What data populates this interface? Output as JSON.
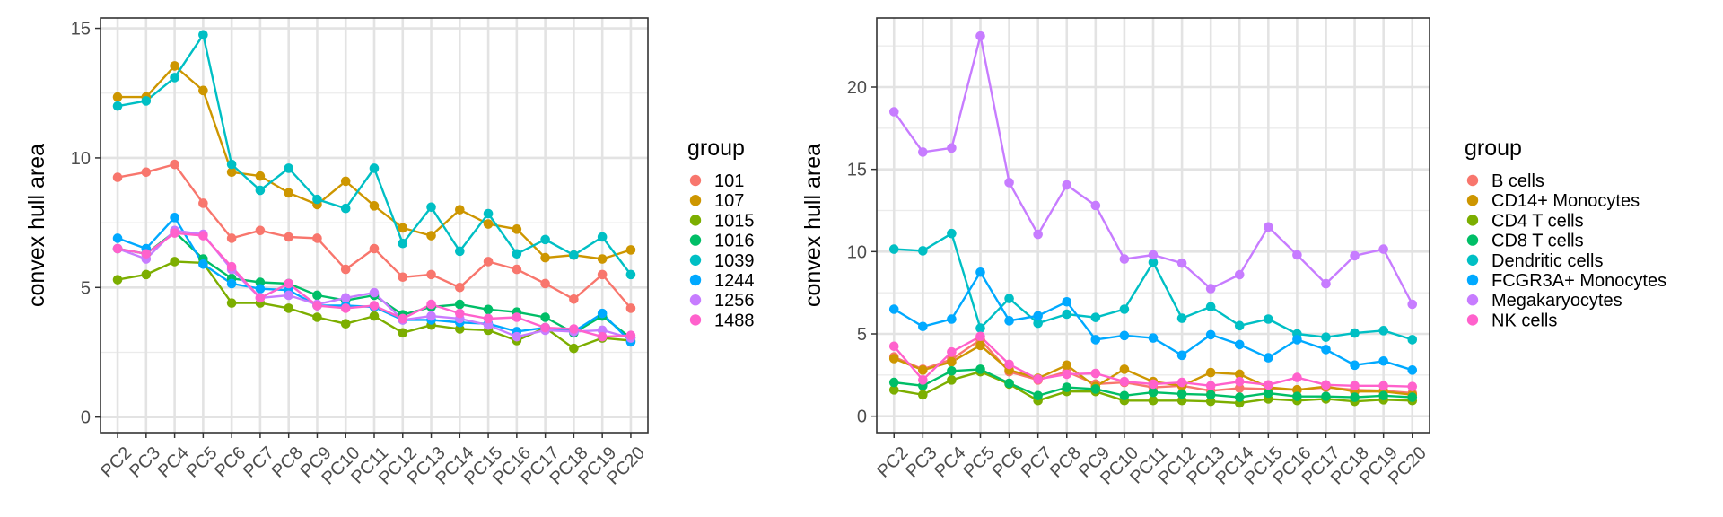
{
  "chart_data": [
    {
      "type": "line",
      "title": "",
      "xlabel": "",
      "ylabel": "convex hull area",
      "categories": [
        "PC2",
        "PC3",
        "PC4",
        "PC5",
        "PC6",
        "PC7",
        "PC8",
        "PC9",
        "PC10",
        "PC11",
        "PC12",
        "PC13",
        "PC14",
        "PC15",
        "PC16",
        "PC17",
        "PC18",
        "PC19",
        "PC20"
      ],
      "ylim": [
        -0.6,
        15.4
      ],
      "yticks": [
        0,
        5,
        10,
        15
      ],
      "grid": true,
      "legend": {
        "title": "group",
        "position": "right"
      },
      "series": [
        {
          "name": "101",
          "color": "#F8766D",
          "values": [
            9.25,
            9.45,
            9.75,
            8.25,
            6.9,
            7.2,
            6.95,
            6.9,
            5.7,
            6.5,
            5.4,
            5.5,
            5.0,
            6.0,
            5.7,
            5.15,
            4.55,
            5.5,
            4.2
          ]
        },
        {
          "name": "107",
          "color": "#CD9600",
          "values": [
            12.35,
            12.35,
            13.55,
            12.6,
            9.45,
            9.3,
            8.65,
            8.2,
            9.1,
            8.15,
            7.3,
            7.0,
            8.0,
            7.45,
            7.25,
            6.15,
            6.25,
            6.1,
            6.45
          ]
        },
        {
          "name": "1015",
          "color": "#7CAE00",
          "values": [
            5.3,
            5.5,
            6.0,
            5.95,
            4.4,
            4.4,
            4.2,
            3.85,
            3.6,
            3.9,
            3.25,
            3.55,
            3.4,
            3.35,
            2.95,
            3.45,
            2.65,
            3.05,
            2.95
          ]
        },
        {
          "name": "1016",
          "color": "#00BE67",
          "values": [
            6.5,
            6.3,
            7.15,
            6.1,
            5.35,
            5.2,
            5.15,
            4.7,
            4.5,
            4.7,
            3.95,
            4.25,
            4.35,
            4.15,
            4.05,
            3.85,
            3.25,
            3.9,
            3.05
          ]
        },
        {
          "name": "1039",
          "color": "#00BFC4",
          "values": [
            12.0,
            12.2,
            13.1,
            14.75,
            9.75,
            8.75,
            9.6,
            8.4,
            8.05,
            9.6,
            6.7,
            8.1,
            6.4,
            7.85,
            6.3,
            6.85,
            6.25,
            6.95,
            5.5
          ]
        },
        {
          "name": "1244",
          "color": "#00A9FF",
          "values": [
            6.9,
            6.5,
            7.7,
            5.9,
            5.15,
            4.95,
            4.9,
            4.3,
            4.3,
            4.25,
            3.75,
            3.75,
            3.65,
            3.6,
            3.3,
            3.45,
            3.3,
            4.0,
            2.9
          ]
        },
        {
          "name": "1256",
          "color": "#C77CFF",
          "values": [
            6.5,
            6.1,
            7.2,
            7.05,
            5.7,
            4.6,
            4.7,
            4.35,
            4.6,
            4.8,
            3.75,
            3.9,
            3.8,
            3.55,
            3.1,
            3.35,
            3.3,
            3.35,
            3.05
          ]
        },
        {
          "name": "1488",
          "color": "#FF61CC",
          "values": [
            6.5,
            6.3,
            7.1,
            7.0,
            5.8,
            4.6,
            5.15,
            4.3,
            4.2,
            4.3,
            3.8,
            4.35,
            4.0,
            3.8,
            3.85,
            3.45,
            3.4,
            3.1,
            3.15
          ]
        }
      ]
    },
    {
      "type": "line",
      "title": "",
      "xlabel": "",
      "ylabel": "convex hull area",
      "categories": [
        "PC2",
        "PC3",
        "PC4",
        "PC5",
        "PC6",
        "PC7",
        "PC8",
        "PC9",
        "PC10",
        "PC11",
        "PC12",
        "PC13",
        "PC14",
        "PC15",
        "PC16",
        "PC17",
        "PC18",
        "PC19",
        "PC20"
      ],
      "ylim": [
        -1.0,
        24.2
      ],
      "yticks": [
        0,
        5,
        10,
        15,
        20
      ],
      "grid": true,
      "legend": {
        "title": "group",
        "position": "right"
      },
      "series": [
        {
          "name": "B cells",
          "color": "#F8766D",
          "values": [
            3.6,
            2.85,
            3.45,
            4.65,
            2.7,
            2.2,
            2.7,
            1.95,
            2.05,
            1.75,
            1.85,
            1.55,
            1.7,
            1.65,
            1.6,
            1.75,
            1.6,
            1.55,
            1.4
          ]
        },
        {
          "name": "CD14+ Monocytes",
          "color": "#CD9600",
          "values": [
            3.5,
            2.8,
            3.3,
            4.3,
            2.8,
            2.3,
            3.1,
            1.8,
            2.85,
            2.1,
            1.85,
            2.65,
            2.55,
            1.75,
            1.6,
            1.8,
            1.5,
            1.5,
            1.3
          ]
        },
        {
          "name": "CD4 T cells",
          "color": "#7CAE00",
          "values": [
            1.6,
            1.3,
            2.2,
            2.7,
            1.95,
            0.95,
            1.5,
            1.5,
            0.95,
            0.95,
            0.95,
            0.9,
            0.8,
            1.05,
            0.95,
            1.05,
            0.9,
            1.0,
            0.95
          ]
        },
        {
          "name": "CD8 T cells",
          "color": "#00BE67",
          "values": [
            2.05,
            1.85,
            2.75,
            2.85,
            2.0,
            1.25,
            1.75,
            1.65,
            1.25,
            1.45,
            1.35,
            1.3,
            1.15,
            1.4,
            1.2,
            1.2,
            1.15,
            1.25,
            1.15
          ]
        },
        {
          "name": "Dendritic cells",
          "color": "#00BFC4",
          "values": [
            10.15,
            10.05,
            11.1,
            5.35,
            7.15,
            5.65,
            6.2,
            6.0,
            6.5,
            9.35,
            5.95,
            6.65,
            5.5,
            5.9,
            5.0,
            4.8,
            5.05,
            5.2,
            4.65
          ]
        },
        {
          "name": "FCGR3A+ Monocytes",
          "color": "#00A9FF",
          "values": [
            6.5,
            5.45,
            5.9,
            8.75,
            5.8,
            6.1,
            6.95,
            4.65,
            4.9,
            4.75,
            3.7,
            4.95,
            4.35,
            3.55,
            4.65,
            4.05,
            3.1,
            3.35,
            2.8
          ]
        },
        {
          "name": "Megakaryocytes",
          "color": "#C77CFF",
          "values": [
            18.5,
            16.05,
            16.3,
            23.1,
            14.2,
            11.05,
            14.05,
            12.8,
            9.55,
            9.8,
            9.3,
            7.75,
            8.6,
            11.5,
            9.8,
            8.05,
            9.75,
            10.15,
            6.8
          ]
        },
        {
          "name": "NK cells",
          "color": "#FF61CC",
          "values": [
            4.25,
            2.2,
            3.9,
            4.85,
            3.15,
            2.25,
            2.55,
            2.6,
            2.1,
            1.95,
            2.05,
            1.85,
            2.1,
            1.9,
            2.35,
            1.9,
            1.85,
            1.85,
            1.8
          ]
        }
      ]
    }
  ]
}
